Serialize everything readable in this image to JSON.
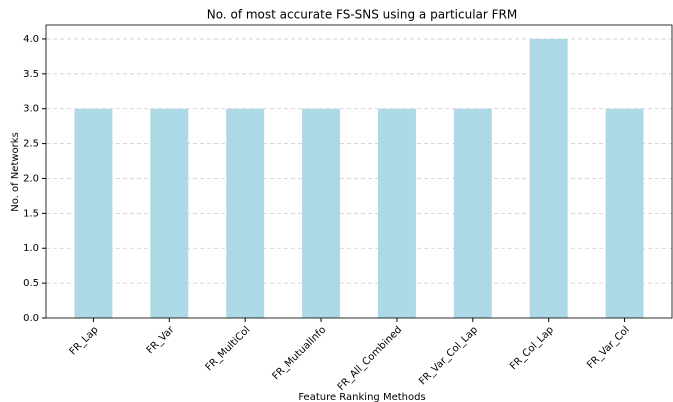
{
  "chart_data": {
    "type": "bar",
    "title": "No. of most accurate FS-SNS using a particular FRM",
    "x_label": "Feature Ranking Methods",
    "y_label": "No. of Networks",
    "categories": [
      "FR_Lap",
      "FR_Var",
      "FR_MultiCol",
      "FR_MutualInfo",
      "FR_All_Combined",
      "FR_Var_Col_Lap",
      "FR_Col_Lap",
      "FR_Var_Col"
    ],
    "values": [
      3,
      3,
      3,
      3,
      3,
      3,
      4,
      3
    ],
    "color": "#add8e6",
    "ylim": [
      0,
      4.2
    ],
    "yticks": [
      {
        "value": 0,
        "label": "0.0"
      },
      {
        "value": 0.5,
        "label": "0.5"
      },
      {
        "value": 1,
        "label": "1.0"
      },
      {
        "value": 1.5,
        "label": "1.5"
      },
      {
        "value": 2,
        "label": "2.0"
      },
      {
        "value": 2.5,
        "label": "2.5"
      },
      {
        "value": 3,
        "label": "3.0"
      },
      {
        "value": 3.5,
        "label": "3.5"
      },
      {
        "value": 4,
        "label": "4.0"
      }
    ],
    "grid": true
  }
}
